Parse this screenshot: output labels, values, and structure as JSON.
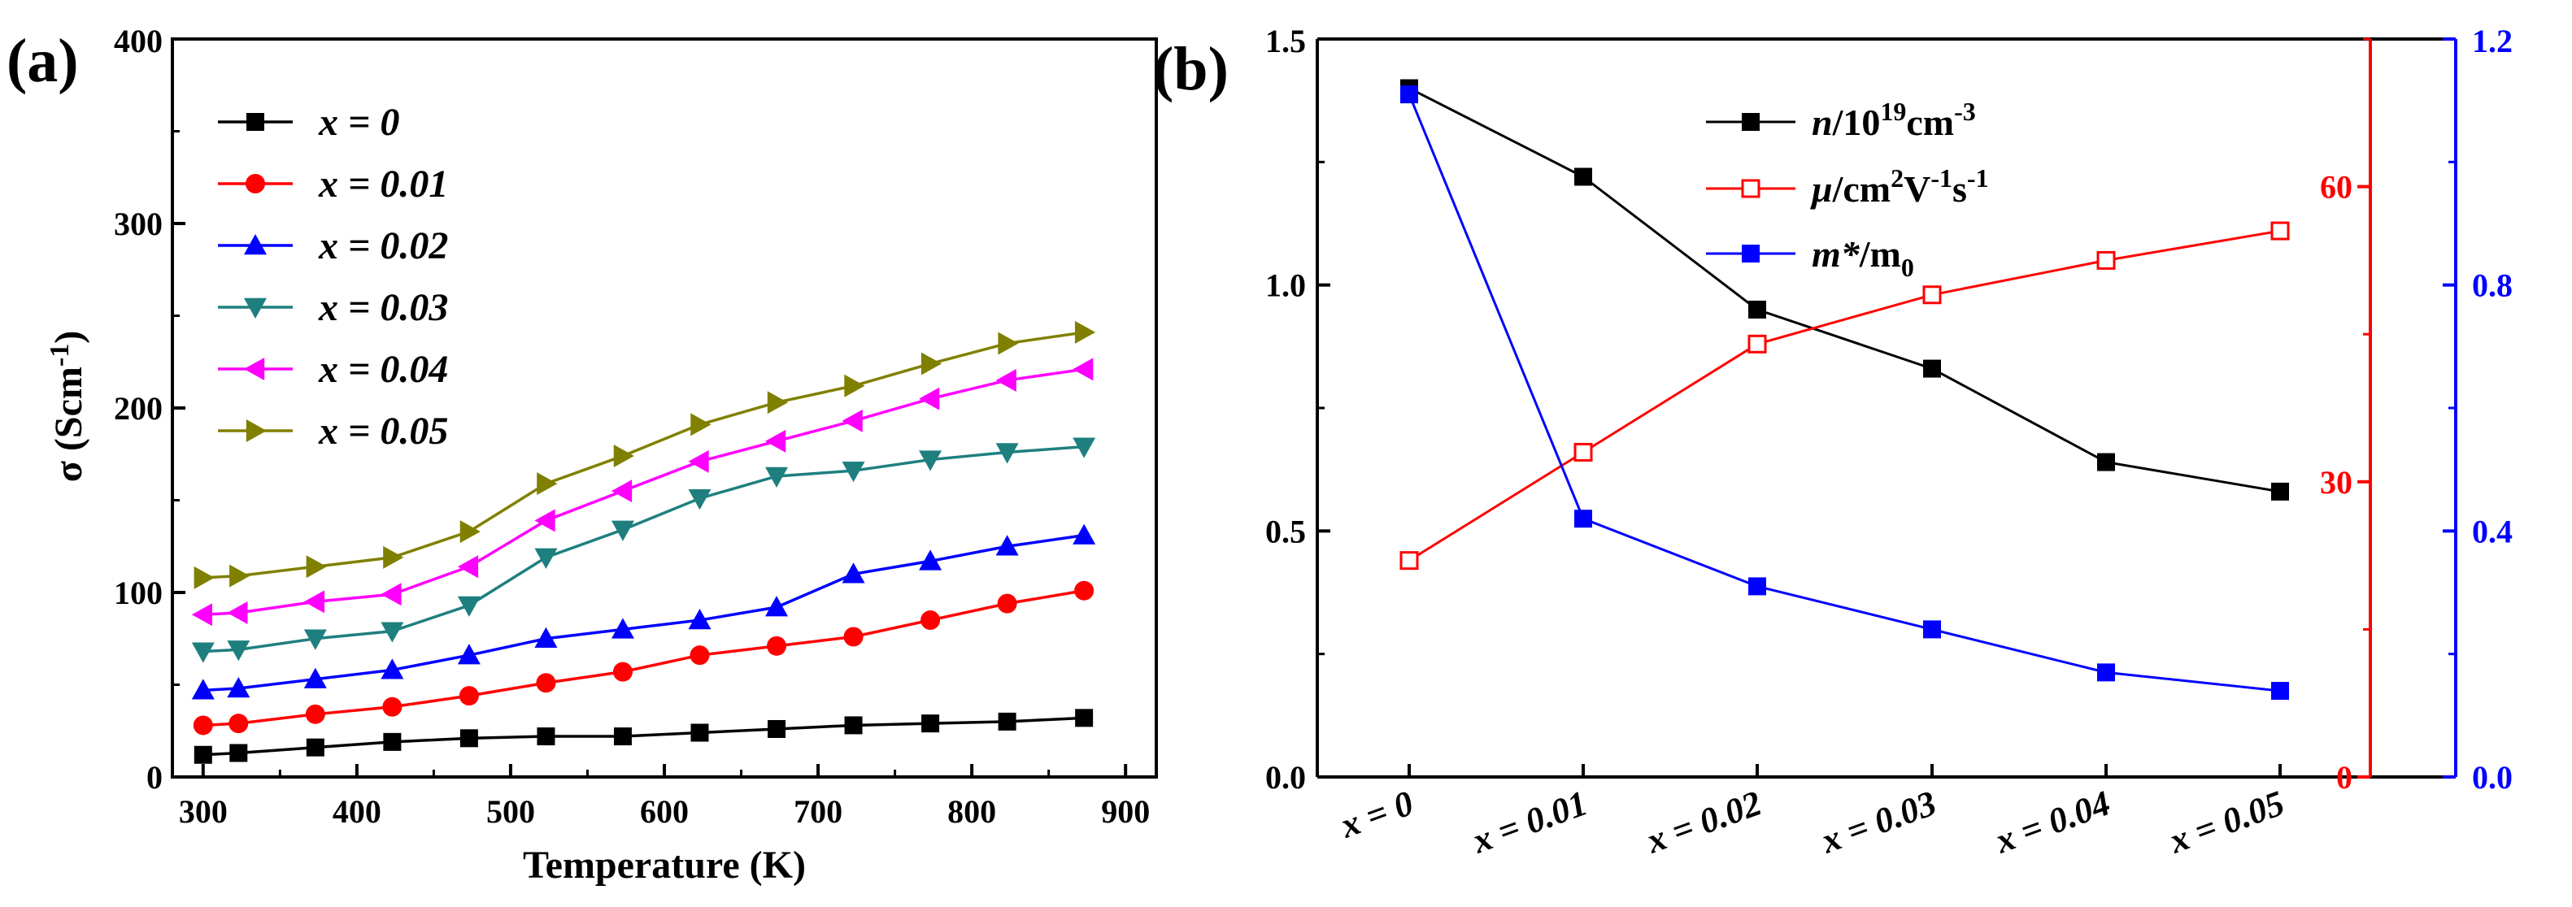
{
  "chart_data": [
    {
      "panel_label": "(a)",
      "type": "line",
      "xlabel": "Temperature (K)",
      "ylabel": {
        "main": "σ (Scm",
        "sup": "-1",
        "end": ")"
      },
      "xlim": [
        280,
        920
      ],
      "ylim": [
        0,
        400
      ],
      "xticks": [
        300,
        400,
        500,
        600,
        700,
        800,
        900
      ],
      "yticks": [
        0,
        100,
        200,
        300,
        400
      ],
      "legend_position": "top-left",
      "series": [
        {
          "name": "x = 0",
          "color": "#000000",
          "marker": "square",
          "x": [
            300,
            323,
            373,
            423,
            473,
            523,
            573,
            623,
            673,
            723,
            773,
            823,
            873
          ],
          "y": [
            12,
            13,
            16,
            19,
            21,
            22,
            22,
            24,
            26,
            28,
            29,
            30,
            32
          ]
        },
        {
          "name": "x = 0.01",
          "color": "#ff0000",
          "marker": "circle",
          "x": [
            300,
            323,
            373,
            423,
            473,
            523,
            573,
            623,
            673,
            723,
            773,
            823,
            873
          ],
          "y": [
            28,
            29,
            34,
            38,
            44,
            51,
            57,
            66,
            71,
            76,
            85,
            94,
            101
          ]
        },
        {
          "name": "x = 0.02",
          "color": "#0000ff",
          "marker": "triangle-up",
          "x": [
            300,
            323,
            373,
            423,
            473,
            523,
            573,
            623,
            673,
            723,
            773,
            823,
            873
          ],
          "y": [
            47,
            48,
            53,
            58,
            66,
            75,
            80,
            85,
            92,
            110,
            117,
            125,
            131
          ]
        },
        {
          "name": "x = 0.03",
          "color": "#1f7f7f",
          "marker": "triangle-down",
          "x": [
            300,
            323,
            373,
            423,
            473,
            523,
            573,
            623,
            673,
            723,
            773,
            823,
            873
          ],
          "y": [
            68,
            69,
            75,
            79,
            93,
            119,
            134,
            151,
            163,
            166,
            172,
            176,
            179
          ]
        },
        {
          "name": "x = 0.04",
          "color": "#ff00ff",
          "marker": "triangle-left",
          "x": [
            300,
            323,
            373,
            423,
            473,
            523,
            573,
            623,
            673,
            723,
            773,
            823,
            873
          ],
          "y": [
            88,
            89,
            95,
            99,
            114,
            139,
            155,
            171,
            182,
            193,
            205,
            215,
            221
          ]
        },
        {
          "name": "x = 0.05",
          "color": "#808000",
          "marker": "triangle-right",
          "x": [
            300,
            323,
            373,
            423,
            473,
            523,
            573,
            623,
            673,
            723,
            773,
            823,
            873
          ],
          "y": [
            108,
            109,
            114,
            119,
            133,
            159,
            174,
            191,
            203,
            212,
            224,
            235,
            241
          ]
        }
      ]
    },
    {
      "panel_label": "(b)",
      "type": "line",
      "categories": [
        "x = 0",
        "x = 0.01",
        "x = 0.02",
        "x = 0.03",
        "x = 0.04",
        "x = 0.05"
      ],
      "ylim_left": [
        0,
        1.5
      ],
      "yticks_left": [
        "0.0",
        "0.5",
        "1.0",
        "1.5"
      ],
      "ylim_right_red": [
        0,
        75
      ],
      "yticks_right_red": [
        "0",
        "30",
        "60"
      ],
      "ylim_right_blue": [
        0,
        1.2
      ],
      "yticks_right_blue": [
        "0.0",
        "0.4",
        "0.8",
        "1.2"
      ],
      "legend_position": "top-right",
      "series": [
        {
          "name": {
            "main": "n/10",
            "sup": "19",
            "mid": "cm",
            "sup2": "-3"
          },
          "axis": "left",
          "color": "#000000",
          "marker": "filled-square",
          "values": [
            1.4,
            1.22,
            0.95,
            0.83,
            0.64,
            0.58
          ]
        },
        {
          "name": {
            "main": "μ/cm",
            "sup": "2",
            "mid": "V",
            "sup2": "-1",
            "end": "s",
            "sup3": "-1"
          },
          "axis": "right-red",
          "color": "#ff0000",
          "marker": "open-square",
          "values": [
            22,
            33,
            44,
            49,
            52.5,
            55.5
          ]
        },
        {
          "name": {
            "main": "m*/m",
            "sub": "0"
          },
          "axis": "right-blue",
          "color": "#0000ff",
          "marker": "filled-square",
          "values": [
            1.11,
            0.42,
            0.31,
            0.24,
            0.17,
            0.14
          ]
        }
      ]
    }
  ]
}
